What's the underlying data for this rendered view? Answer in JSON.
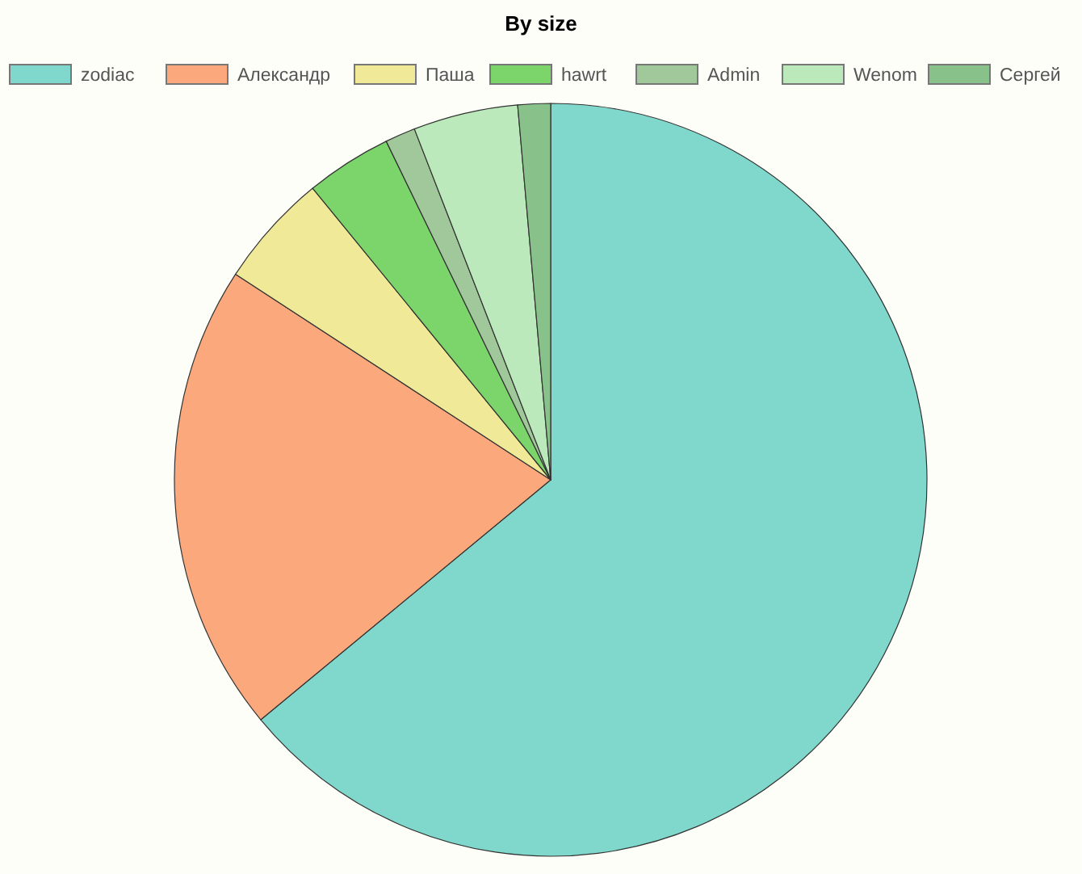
{
  "chart_data": {
    "type": "pie",
    "title": "By size",
    "categories": [
      "zodiac",
      "Александр",
      "Паша",
      "hawrt",
      "Admin",
      "Wenom",
      "Сергей"
    ],
    "values": [
      64.0,
      20.2,
      4.9,
      3.7,
      1.3,
      4.5,
      1.4
    ],
    "colors": [
      "#80d8cc",
      "#fba97c",
      "#f0ea98",
      "#7bd56b",
      "#a0c89a",
      "#bbe9bb",
      "#88c18a"
    ],
    "legend": "top"
  }
}
